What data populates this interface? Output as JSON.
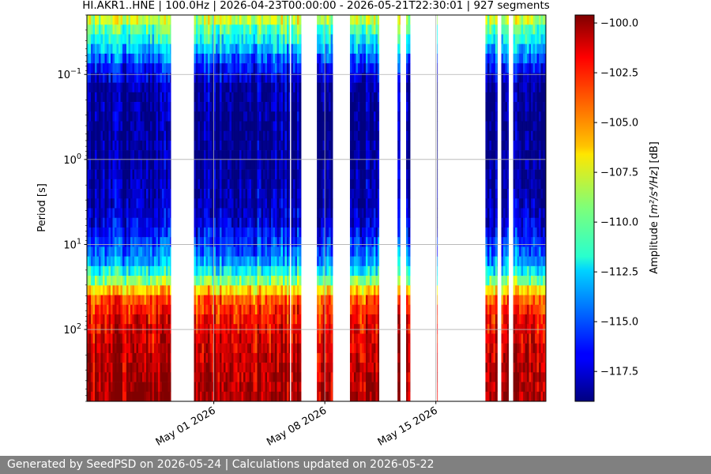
{
  "chart_data": {
    "type": "heatmap",
    "title": "HI.AKR1..HNE | 100.0Hz | 2026-04-23T00:00:00 - 2026-05-21T22:30:01 | 927 segments",
    "xlabel": "",
    "ylabel": "Period [s]",
    "x_range": [
      "2026-04-23T00:00:00",
      "2026-05-21T22:30:01"
    ],
    "x_ticks": [
      {
        "date": "2026-05-01",
        "label": "May 01 2026"
      },
      {
        "date": "2026-05-08",
        "label": "May 08 2026"
      },
      {
        "date": "2026-05-15",
        "label": "May 15 2026"
      }
    ],
    "y_scale": "log",
    "y_inverted": true,
    "y_range": [
      0.02,
      700
    ],
    "y_ticks": [
      {
        "value": 0.1,
        "base": "10",
        "exp": "−1"
      },
      {
        "value": 1,
        "base": "10",
        "exp": "0"
      },
      {
        "value": 10,
        "base": "10",
        "exp": "1"
      },
      {
        "value": 100,
        "base": "10",
        "exp": "2"
      }
    ],
    "grid": true,
    "colormap": "jet",
    "colorbar": {
      "label_prefix": "Amplitude [",
      "label_units": "m²/s⁴/Hz",
      "label_suffix": "] [dB]",
      "range": [
        -119.0,
        -99.6
      ],
      "ticks": [
        "−100.0",
        "−102.5",
        "−105.0",
        "−107.5",
        "−110.0",
        "−112.5",
        "−115.0",
        "−117.5"
      ],
      "tick_values": [
        -100.0,
        -102.5,
        -105.0,
        -107.5,
        -110.0,
        -112.5,
        -115.0,
        -117.5
      ]
    },
    "data_periods": [
      [
        "2026-04-23T00:00:00",
        "2026-04-28T07:00:00"
      ],
      [
        "2026-04-29T18:00:00",
        "2026-05-05T19:00:00"
      ],
      [
        "2026-05-05T21:00:00",
        "2026-05-06T12:00:00"
      ],
      [
        "2026-05-07T12:00:00",
        "2026-05-08T12:00:00"
      ],
      [
        "2026-05-09T14:00:00",
        "2026-05-11T10:00:00"
      ],
      [
        "2026-05-12T14:00:00",
        "2026-05-12T18:00:00"
      ],
      [
        "2026-05-13T03:00:00",
        "2026-05-13T09:00:00"
      ],
      [
        "2026-05-15T02:00:00",
        "2026-05-15T02:30:00"
      ],
      [
        "2026-05-18T03:00:00",
        "2026-05-18T21:00:00"
      ],
      [
        "2026-05-19T03:00:00",
        "2026-05-19T14:00:00"
      ],
      [
        "2026-05-19T21:00:00",
        "2026-05-21T22:30:01"
      ]
    ],
    "spectrum_db_by_period": {
      "periods_s": [
        0.02,
        0.03,
        0.05,
        0.08,
        0.15,
        0.5,
        2,
        5,
        15,
        22,
        30,
        40,
        70,
        150,
        700
      ],
      "amplitude_db": [
        -107,
        -110,
        -113,
        -116,
        -118.5,
        -118.8,
        -118.3,
        -117.5,
        -114,
        -111,
        -108,
        -104,
        -102,
        -101,
        -100
      ]
    }
  },
  "footer": {
    "text": "Generated by SeedPSD on 2026-05-24 | Calculations updated on 2026-05-22"
  }
}
